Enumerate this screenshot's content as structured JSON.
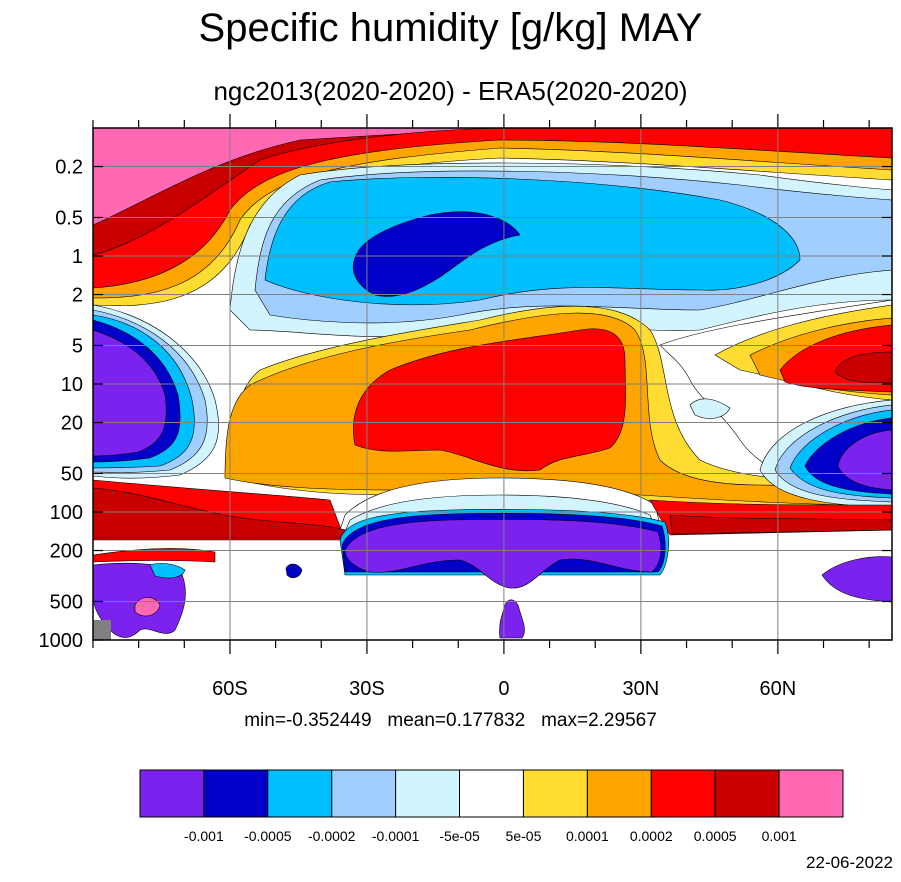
{
  "chart_data": {
    "type": "heatmap",
    "title": "Specific humidity [g/kg] MAY",
    "subtitle": "ngc2013(2020-2020) - ERA5(2020-2020)",
    "x_axis": {
      "ticks": [
        -60,
        -30,
        0,
        30,
        60
      ],
      "tick_labels": [
        "60S",
        "30S",
        "0",
        "30N",
        "60N"
      ],
      "range": [
        -90,
        85
      ]
    },
    "y_axis": {
      "scale": "log",
      "reversed": true,
      "ticks": [
        0.2,
        0.5,
        1,
        2,
        5,
        10,
        20,
        50,
        100,
        200,
        500,
        1000
      ],
      "tick_labels": [
        "0.2",
        "0.5",
        "1",
        "2",
        "5",
        "10",
        "20",
        "50",
        "100",
        "200",
        "500",
        "1000"
      ],
      "range": [
        1000,
        0.1
      ]
    },
    "grid": true,
    "stats": {
      "min_label": "min=-0.352449",
      "mean_label": "mean=0.177832",
      "max_label": "max=2.29567"
    },
    "colorbar": {
      "placement": "bottom",
      "levels": [
        "-0.001",
        "-0.0005",
        "-0.0002",
        "-0.0001",
        "-5e-05",
        "5e-05",
        "0.0001",
        "0.0002",
        "0.0005",
        "0.001"
      ],
      "colors": [
        "#7b22ef",
        "#0000c8",
        "#00bfff",
        "#a0cfff",
        "#d2f4ff",
        "#ffffff",
        "#ffdc32",
        "#ffa500",
        "#ff0000",
        "#c80000",
        "#ff69b4"
      ]
    },
    "colors": {
      "missing": "#808080",
      "contour_line": "#000000",
      "grid_line": "#808080"
    }
  },
  "footer": {
    "date": "22-06-2022"
  }
}
